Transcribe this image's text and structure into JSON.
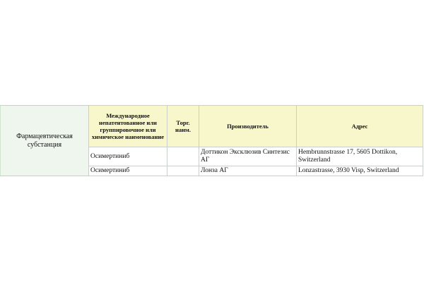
{
  "table": {
    "row_label": "Фармацевтическая субстанция",
    "headers": [
      "Международное непатентованное или группировочное или химическое наименование",
      "Торг. наим.",
      "Производитель",
      "Адрес"
    ],
    "rows": [
      [
        "Осимертиниб",
        "",
        "Доттикон Эксклюзив Синтезис АГ",
        "Hembrunnstrasse 17, 5605 Dottikon, Switzerland"
      ],
      [
        "Осимертиниб",
        "",
        "Лонза АГ",
        "Lonzastrasse, 3930 Visp, Switzerland"
      ]
    ]
  },
  "colors": {
    "header_bg": "#f8f7cc",
    "side_bg": "#eef6ee",
    "border": "#c9cfc9"
  }
}
